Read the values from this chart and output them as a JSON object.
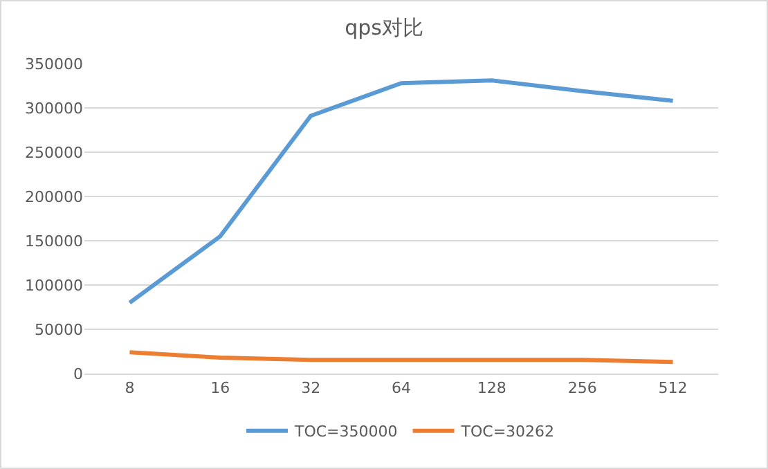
{
  "chart_data": {
    "type": "line",
    "title": "qps对比",
    "categories": [
      "8",
      "16",
      "32",
      "64",
      "128",
      "256",
      "512"
    ],
    "series": [
      {
        "name": "TOC=350000",
        "color": "#5b9bd5",
        "values": [
          80000,
          155000,
          291000,
          328000,
          331000,
          319000,
          308000
        ]
      },
      {
        "name": "TOC=30262",
        "color": "#ed7d31",
        "values": [
          24000,
          18000,
          15500,
          15500,
          15500,
          15500,
          13000
        ]
      }
    ],
    "ylim": [
      0,
      350000
    ],
    "yticks": [
      0,
      50000,
      100000,
      150000,
      200000,
      250000,
      300000,
      350000
    ],
    "grid": "y",
    "legend": "bottom",
    "marker": "none",
    "line_style": "solid"
  }
}
